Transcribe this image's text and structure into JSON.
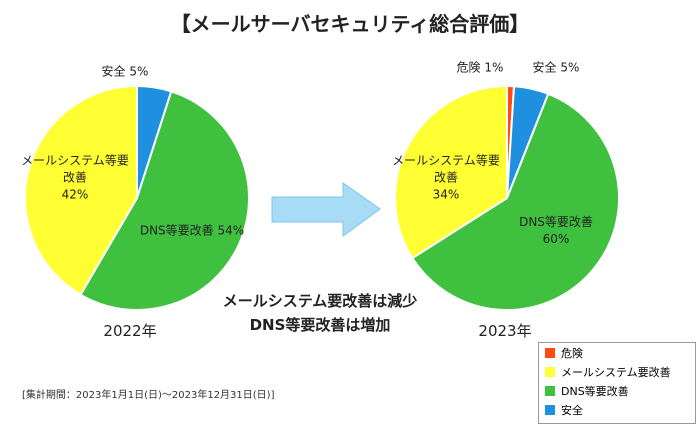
{
  "title": "【メールサーバセキュリティ総合評価】",
  "annotation": [
    "メールシステム要改善は減少",
    "DNS等要改善は増加"
  ],
  "footnote": "[集計期間：2023年1月1日(日)～2023年12月31日(日)]",
  "legend": [
    {
      "name": "危険",
      "color": "#ff4a12"
    },
    {
      "name": "メールシステム要改善",
      "color": "#ffff33"
    },
    {
      "name": "DNS等要改善",
      "color": "#3fc03f"
    },
    {
      "name": "安全",
      "color": "#1f8fdf"
    }
  ],
  "chart_data": [
    {
      "type": "pie",
      "title": "2022年",
      "categories": [
        "安全",
        "DNS等要改善",
        "メールシステム等要改善"
      ],
      "values": [
        5,
        54,
        42
      ],
      "value_labels": [
        "5%",
        "54%",
        "42%"
      ],
      "colors": [
        "#1f8fdf",
        "#3fc03f",
        "#ffff33"
      ]
    },
    {
      "type": "pie",
      "title": "2023年",
      "categories": [
        "危険",
        "安全",
        "DNS等要改善",
        "メールシステム等要改善"
      ],
      "values": [
        1,
        5,
        60,
        34
      ],
      "value_labels": [
        "1%",
        "5%",
        "60%",
        "34%"
      ],
      "colors": [
        "#ff4a12",
        "#1f8fdf",
        "#3fc03f",
        "#ffff33"
      ]
    }
  ]
}
